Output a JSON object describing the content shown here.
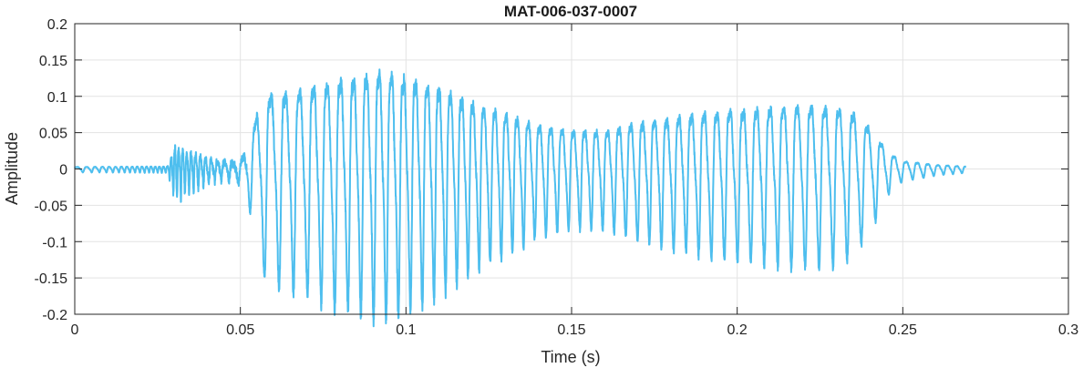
{
  "chart_data": {
    "type": "line",
    "title": "MAT-006-037-0007",
    "xlabel": "Time (s)",
    "ylabel": "Amplitude",
    "xlim": [
      0,
      0.3
    ],
    "ylim": [
      -0.2,
      0.2
    ],
    "x_ticks": [
      0,
      0.05,
      0.1,
      0.15,
      0.2,
      0.25,
      0.3
    ],
    "x_tick_labels": [
      "0",
      "0.05",
      "0.1",
      "0.15",
      "0.2",
      "0.25",
      "0.3"
    ],
    "y_ticks": [
      -0.2,
      -0.15,
      -0.1,
      -0.05,
      0,
      0.05,
      0.1,
      0.15,
      0.2
    ],
    "y_tick_labels": [
      "-0.2",
      "-0.15",
      "-0.1",
      "-0.05",
      "0",
      "0.05",
      "0.1",
      "0.15",
      "0.2"
    ],
    "grid": true,
    "series": [
      {
        "color": "#4dbeee",
        "duration_s": 0.269,
        "envelope": [
          [
            0,
            0.004
          ],
          [
            0.028,
            0.005
          ],
          [
            0.029,
            0.02
          ],
          [
            0.03,
            0.04
          ],
          [
            0.04,
            0.018
          ],
          [
            0.048,
            0.012
          ],
          [
            0.05,
            0.02
          ],
          [
            0.052,
            0.03
          ],
          [
            0.055,
            0.11
          ],
          [
            0.058,
            0.145
          ],
          [
            0.065,
            0.15
          ],
          [
            0.075,
            0.17
          ],
          [
            0.085,
            0.18
          ],
          [
            0.092,
            0.19
          ],
          [
            0.1,
            0.18
          ],
          [
            0.11,
            0.16
          ],
          [
            0.12,
            0.13
          ],
          [
            0.13,
            0.11
          ],
          [
            0.14,
            0.085
          ],
          [
            0.15,
            0.075
          ],
          [
            0.16,
            0.075
          ],
          [
            0.17,
            0.09
          ],
          [
            0.18,
            0.1
          ],
          [
            0.19,
            0.11
          ],
          [
            0.2,
            0.115
          ],
          [
            0.21,
            0.12
          ],
          [
            0.22,
            0.125
          ],
          [
            0.23,
            0.12
          ],
          [
            0.235,
            0.11
          ],
          [
            0.24,
            0.08
          ],
          [
            0.243,
            0.055
          ],
          [
            0.246,
            0.03
          ],
          [
            0.25,
            0.015
          ],
          [
            0.255,
            0.012
          ],
          [
            0.26,
            0.008
          ],
          [
            0.269,
            0.005
          ]
        ],
        "pitch_hz": [
          [
            0,
            300
          ],
          [
            0.03,
            900
          ],
          [
            0.05,
            300
          ],
          [
            0.055,
            220
          ],
          [
            0.08,
            250
          ],
          [
            0.12,
            300
          ],
          [
            0.16,
            290
          ],
          [
            0.2,
            250
          ],
          [
            0.24,
            230
          ],
          [
            0.269,
            380
          ]
        ]
      }
    ]
  }
}
